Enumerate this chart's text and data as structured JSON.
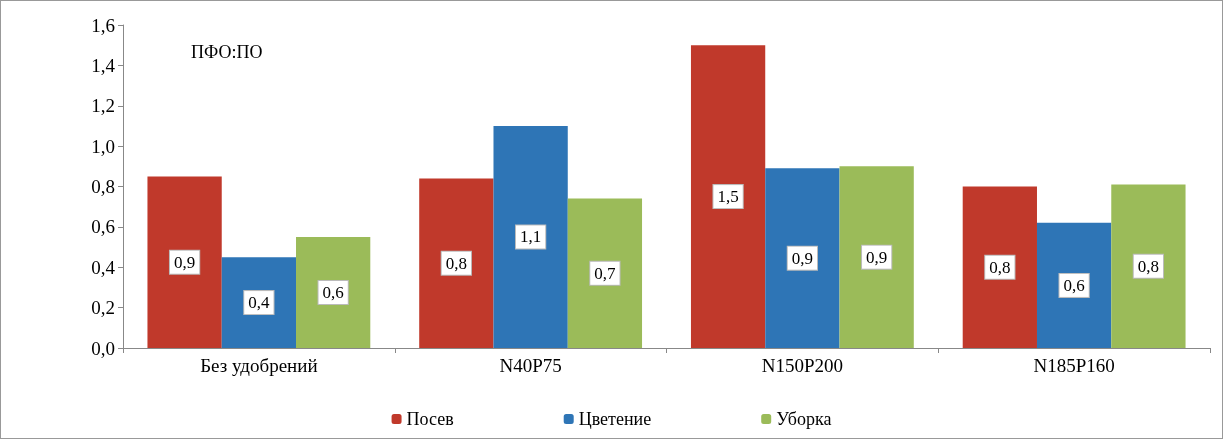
{
  "chart_data": {
    "type": "bar",
    "categories": [
      "Без удобрений",
      "N40P75",
      "N150P200",
      "N185P160"
    ],
    "series": [
      {
        "name": "Посев",
        "color": "#c0392b",
        "values": [
          0.85,
          0.84,
          1.5,
          0.8
        ],
        "value_labels": [
          "0,9",
          "0,8",
          "1,5",
          "0,8"
        ]
      },
      {
        "name": "Цветение",
        "color": "#2e75b6",
        "values": [
          0.45,
          1.1,
          0.89,
          0.62
        ],
        "value_labels": [
          "0,4",
          "1,1",
          "0,9",
          "0,6"
        ]
      },
      {
        "name": "Уборка",
        "color": "#9bbb59",
        "values": [
          0.55,
          0.74,
          0.9,
          0.81
        ],
        "value_labels": [
          "0,6",
          "0,7",
          "0,9",
          "0,8"
        ]
      }
    ],
    "ylim": [
      0,
      1.6
    ],
    "yticks": [
      {
        "value": 0,
        "label": "0,0"
      },
      {
        "value": 0.2,
        "label": "0,2"
      },
      {
        "value": 0.4,
        "label": "0,4"
      },
      {
        "value": 0.6,
        "label": "0,6"
      },
      {
        "value": 0.8,
        "label": "0,8"
      },
      {
        "value": 1.0,
        "label": "1,0"
      },
      {
        "value": 1.2,
        "label": "1,2"
      },
      {
        "value": 1.4,
        "label": "1,4"
      },
      {
        "value": 1.6,
        "label": "1,6"
      }
    ],
    "annotations": [
      "ПФО:ПО"
    ],
    "grid": false,
    "legend": "bottom"
  }
}
